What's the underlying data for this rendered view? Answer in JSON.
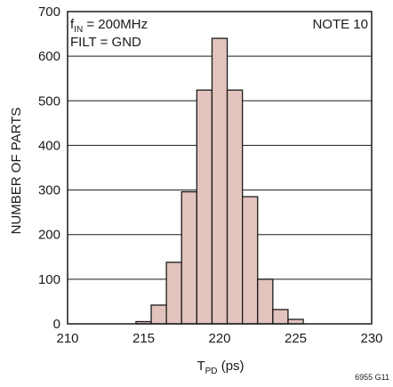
{
  "chart_data": {
    "type": "bar",
    "bin_width": 1,
    "bin_centers": [
      210,
      211,
      212,
      213,
      214,
      215,
      216,
      217,
      218,
      219,
      220,
      221,
      222,
      223,
      224,
      225,
      226,
      227,
      228,
      229,
      230
    ],
    "values": [
      0,
      0,
      0,
      0,
      0,
      5,
      42,
      138,
      296,
      524,
      640,
      524,
      285,
      100,
      32,
      10,
      0,
      0,
      0,
      0,
      0
    ],
    "xlim": [
      210,
      230
    ],
    "ylim": [
      0,
      700
    ],
    "x_ticks": [
      "210",
      "215",
      "220",
      "225",
      "230"
    ],
    "y_ticks": [
      "0",
      "100",
      "200",
      "300",
      "400",
      "500",
      "600",
      "700"
    ],
    "xlabel_main": "T",
    "xlabel_sub": "PD",
    "xlabel_unit": " (ps)",
    "ylabel": "NUMBER OF PARTS",
    "grid": true,
    "bar_fill": "#e3c3bd",
    "bar_stroke": "#1a1a1a",
    "annotations": {
      "line1_f": "f",
      "line1_sub": "IN",
      "line1_rest": " = 200MHz",
      "line2": "FILT = GND",
      "note": "NOTE 10"
    },
    "figure_id": "6955 G11"
  }
}
